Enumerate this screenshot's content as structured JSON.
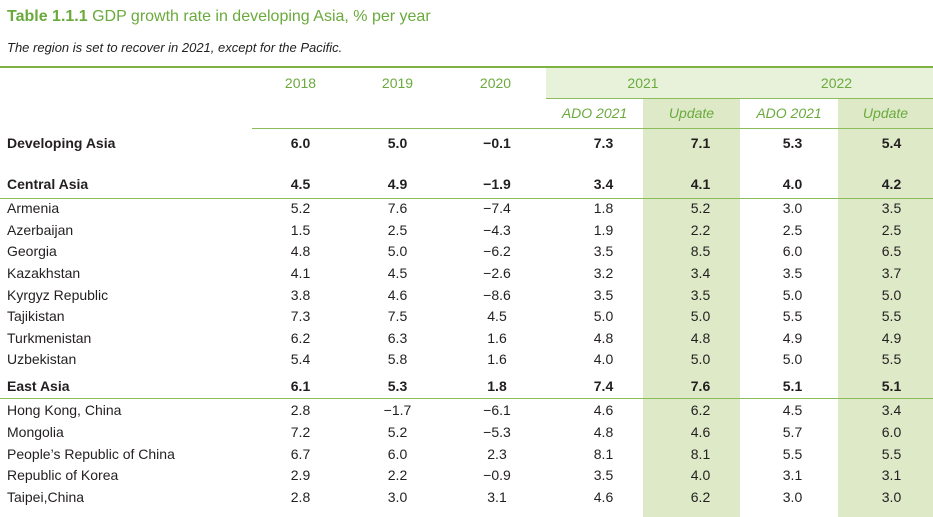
{
  "title": {
    "label": "Table 1.1.1",
    "text": "GDP growth rate in developing Asia, % per year"
  },
  "subtitle": "The region is set to recover in 2021, except for the Pacific.",
  "header": {
    "years": [
      "2018",
      "2019",
      "2020",
      "2021",
      "2022"
    ],
    "subcols": [
      "ADO 2021",
      "Update",
      "ADO 2021",
      "Update"
    ]
  },
  "colors": {
    "accent_green": "#6aaa3c",
    "rule_green": "#7cb342",
    "update_shade": "#dde9c7",
    "header_shade": "#e8f1d9"
  },
  "rows": [
    {
      "name": "Developing Asia",
      "values": [
        "6.0",
        "5.0",
        "−0.1",
        "7.3",
        "7.1",
        "5.3",
        "5.4"
      ],
      "bold": true
    },
    {
      "name": "Central Asia",
      "values": [
        "4.5",
        "4.9",
        "−1.9",
        "3.4",
        "4.1",
        "4.0",
        "4.2"
      ],
      "bold": true
    },
    {
      "name": "Armenia",
      "values": [
        "5.2",
        "7.6",
        "−7.4",
        "1.8",
        "5.2",
        "3.0",
        "3.5"
      ],
      "bold": false
    },
    {
      "name": "Azerbaijan",
      "values": [
        "1.5",
        "2.5",
        "−4.3",
        "1.9",
        "2.2",
        "2.5",
        "2.5"
      ],
      "bold": false
    },
    {
      "name": "Georgia",
      "values": [
        "4.8",
        "5.0",
        "−6.2",
        "3.5",
        "8.5",
        "6.0",
        "6.5"
      ],
      "bold": false
    },
    {
      "name": "Kazakhstan",
      "values": [
        "4.1",
        "4.5",
        "−2.6",
        "3.2",
        "3.4",
        "3.5",
        "3.7"
      ],
      "bold": false
    },
    {
      "name": "Kyrgyz Republic",
      "values": [
        "3.8",
        "4.6",
        "−8.6",
        "3.5",
        "3.5",
        "5.0",
        "5.0"
      ],
      "bold": false
    },
    {
      "name": "Tajikistan",
      "values": [
        "7.3",
        "7.5",
        "4.5",
        "5.0",
        "5.0",
        "5.5",
        "5.5"
      ],
      "bold": false
    },
    {
      "name": "Turkmenistan",
      "values": [
        "6.2",
        "6.3",
        "1.6",
        "4.8",
        "4.8",
        "4.9",
        "4.9"
      ],
      "bold": false
    },
    {
      "name": "Uzbekistan",
      "values": [
        "5.4",
        "5.8",
        "1.6",
        "4.0",
        "5.0",
        "5.0",
        "5.5"
      ],
      "bold": false
    },
    {
      "name": "East Asia",
      "values": [
        "6.1",
        "5.3",
        "1.8",
        "7.4",
        "7.6",
        "5.1",
        "5.1"
      ],
      "bold": true
    },
    {
      "name": "Hong Kong, China",
      "values": [
        "2.8",
        "−1.7",
        "−6.1",
        "4.6",
        "6.2",
        "4.5",
        "3.4"
      ],
      "bold": false
    },
    {
      "name": "Mongolia",
      "values": [
        "7.2",
        "5.2",
        "−5.3",
        "4.8",
        "4.6",
        "5.7",
        "6.0"
      ],
      "bold": false
    },
    {
      "name": "People’s Republic of China",
      "values": [
        "6.7",
        "6.0",
        "2.3",
        "8.1",
        "8.1",
        "5.5",
        "5.5"
      ],
      "bold": false
    },
    {
      "name": "Republic of Korea",
      "values": [
        "2.9",
        "2.2",
        "−0.9",
        "3.5",
        "4.0",
        "3.1",
        "3.1"
      ],
      "bold": false
    },
    {
      "name": "Taipei,China",
      "values": [
        "2.8",
        "3.0",
        "3.1",
        "4.6",
        "6.2",
        "3.0",
        "3.0"
      ],
      "bold": false
    }
  ]
}
